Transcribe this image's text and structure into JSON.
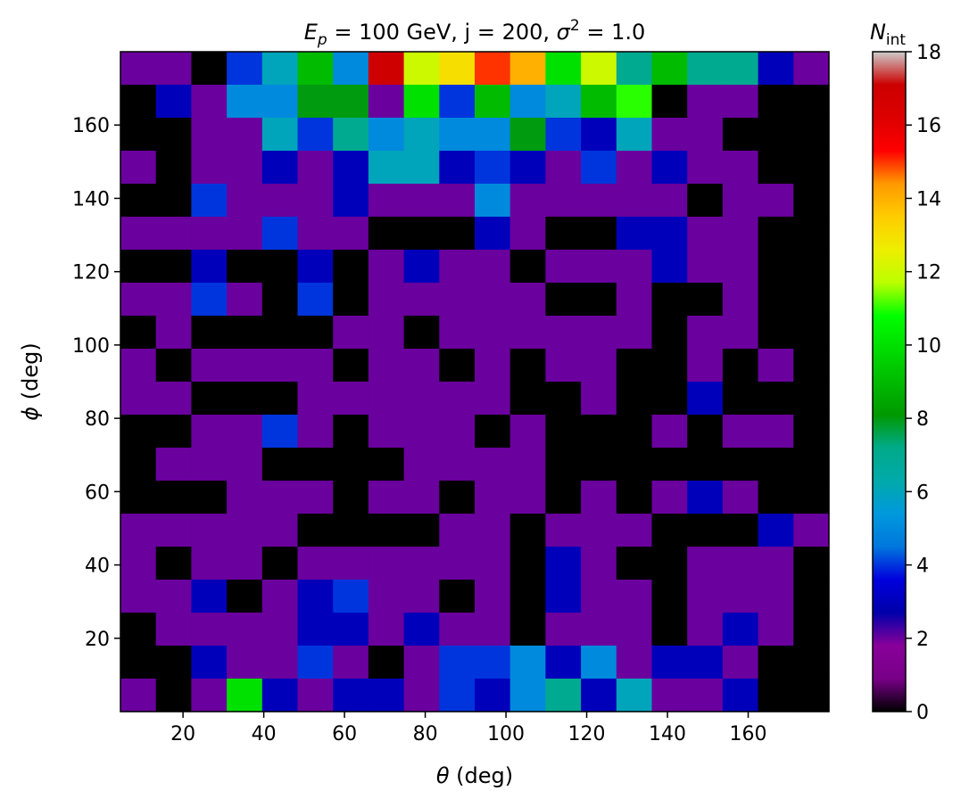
{
  "chart_data": {
    "type": "heatmap",
    "title_parts": {
      "ep_sym": "E",
      "ep_sub": "p",
      "ep_val": " = 100 GeV, j = 200, ",
      "sigma_sym": "σ",
      "sigma_sup": "2",
      "sigma_val": " = 1.0"
    },
    "xlabel_sym": "θ",
    "xlabel_unit": " (deg)",
    "ylabel_sym": "ϕ",
    "ylabel_unit": " (deg)",
    "colorbar_label_sym": "N",
    "colorbar_label_sub": "int",
    "colormap": "nipy_spectral",
    "xlim": [
      4.5,
      180
    ],
    "ylim": [
      0,
      180
    ],
    "x_ticks": [
      "20",
      "40",
      "60",
      "80",
      "100",
      "120",
      "140",
      "160"
    ],
    "y_ticks": [
      "20",
      "40",
      "60",
      "80",
      "100",
      "120",
      "140",
      "160"
    ],
    "x_tick_values": [
      20,
      40,
      60,
      80,
      100,
      120,
      140,
      160
    ],
    "y_tick_values": [
      20,
      40,
      60,
      80,
      100,
      120,
      140,
      160
    ],
    "colorbar_range": [
      0,
      18
    ],
    "colorbar_ticks": [
      "0",
      "2",
      "4",
      "6",
      "8",
      "10",
      "12",
      "14",
      "16",
      "18"
    ],
    "x_bin_edges": [
      4.5,
      13.275,
      22.05,
      30.825,
      39.6,
      48.375,
      57.15,
      65.925,
      74.7,
      83.475,
      92.25,
      101.025,
      109.8,
      118.575,
      127.35,
      136.125,
      144.9,
      153.675,
      162.45,
      171.225,
      180
    ],
    "y_bin_edges": [
      0,
      9,
      18,
      27,
      36,
      45,
      54,
      63,
      72,
      81,
      90,
      99,
      108,
      117,
      126,
      135,
      144,
      153,
      162,
      171,
      180
    ],
    "z_rows_top_to_bottom": [
      [
        2,
        2,
        0,
        4,
        6,
        9,
        5,
        17,
        12,
        13,
        15,
        14,
        10,
        12,
        7,
        9,
        7,
        7,
        3,
        2
      ],
      [
        0,
        3,
        2,
        5,
        5,
        8,
        8,
        2,
        10,
        4,
        9,
        5,
        6,
        9,
        11,
        0,
        2,
        2,
        0,
        0
      ],
      [
        0,
        0,
        2,
        2,
        6,
        4,
        7,
        5,
        6,
        5,
        5,
        8,
        4,
        3,
        6,
        2,
        2,
        0,
        0,
        0
      ],
      [
        2,
        0,
        2,
        2,
        3,
        2,
        3,
        6,
        6,
        3,
        4,
        3,
        2,
        4,
        2,
        3,
        2,
        2,
        0,
        0
      ],
      [
        0,
        0,
        4,
        2,
        2,
        2,
        3,
        2,
        2,
        2,
        5,
        2,
        2,
        2,
        2,
        2,
        0,
        2,
        2,
        0
      ],
      [
        2,
        2,
        2,
        2,
        4,
        2,
        2,
        0,
        0,
        0,
        3,
        2,
        0,
        0,
        3,
        3,
        2,
        2,
        0,
        0
      ],
      [
        0,
        0,
        3,
        0,
        0,
        3,
        0,
        2,
        3,
        2,
        2,
        0,
        2,
        2,
        2,
        3,
        2,
        2,
        0,
        0
      ],
      [
        2,
        2,
        4,
        2,
        0,
        4,
        0,
        2,
        2,
        2,
        2,
        2,
        0,
        0,
        2,
        0,
        0,
        2,
        0,
        0
      ],
      [
        0,
        2,
        0,
        0,
        0,
        0,
        2,
        2,
        0,
        2,
        2,
        2,
        2,
        2,
        2,
        0,
        2,
        2,
        0,
        0
      ],
      [
        2,
        0,
        2,
        2,
        2,
        2,
        0,
        2,
        2,
        0,
        2,
        0,
        2,
        2,
        0,
        0,
        2,
        0,
        2,
        0
      ],
      [
        2,
        2,
        0,
        0,
        0,
        2,
        2,
        2,
        2,
        2,
        2,
        0,
        0,
        2,
        0,
        0,
        3,
        0,
        0,
        0
      ],
      [
        0,
        0,
        2,
        2,
        4,
        2,
        0,
        2,
        2,
        2,
        0,
        2,
        0,
        0,
        0,
        2,
        0,
        2,
        2,
        0
      ],
      [
        0,
        2,
        2,
        2,
        0,
        0,
        0,
        0,
        2,
        2,
        2,
        2,
        0,
        0,
        0,
        0,
        0,
        0,
        0,
        0
      ],
      [
        0,
        0,
        0,
        2,
        2,
        2,
        0,
        2,
        2,
        0,
        2,
        2,
        0,
        2,
        0,
        2,
        3,
        2,
        0,
        0
      ],
      [
        2,
        2,
        2,
        2,
        2,
        0,
        0,
        0,
        0,
        2,
        2,
        0,
        2,
        2,
        2,
        0,
        0,
        0,
        3,
        2
      ],
      [
        2,
        0,
        2,
        2,
        0,
        2,
        2,
        2,
        2,
        2,
        2,
        0,
        3,
        2,
        0,
        0,
        2,
        2,
        2,
        0
      ],
      [
        2,
        2,
        3,
        0,
        2,
        3,
        4,
        2,
        2,
        0,
        2,
        0,
        3,
        2,
        2,
        0,
        2,
        2,
        2,
        0
      ],
      [
        0,
        2,
        2,
        2,
        2,
        3,
        3,
        2,
        3,
        2,
        2,
        0,
        2,
        2,
        2,
        0,
        2,
        3,
        2,
        0
      ],
      [
        0,
        0,
        3,
        2,
        2,
        4,
        2,
        0,
        2,
        4,
        4,
        5,
        3,
        5,
        2,
        3,
        3,
        2,
        0,
        0
      ],
      [
        2,
        0,
        2,
        10,
        3,
        2,
        3,
        3,
        2,
        4,
        3,
        5,
        7,
        3,
        6,
        2,
        2,
        3,
        0,
        0
      ]
    ]
  }
}
